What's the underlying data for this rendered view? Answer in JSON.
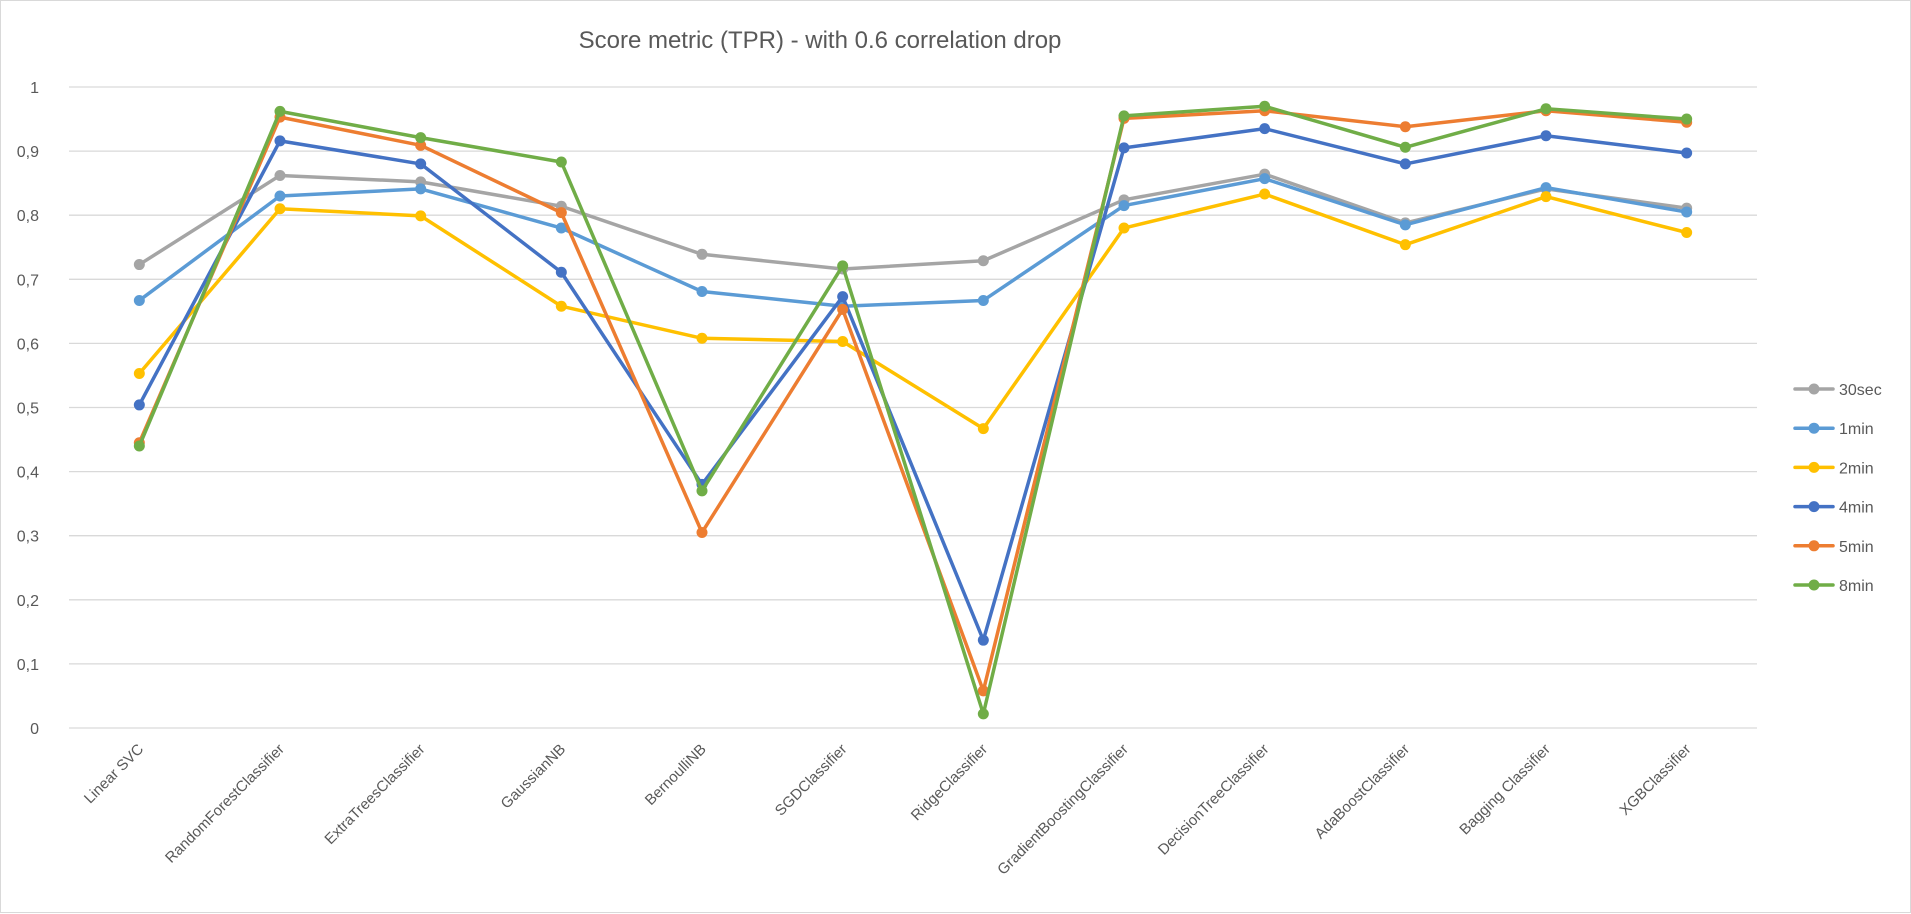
{
  "chart_data": {
    "type": "line",
    "title": "Score metric (TPR) - with 0.6 correlation drop",
    "xlabel": "",
    "ylabel": "",
    "ylim": [
      0,
      1
    ],
    "y_ticks": [
      "0",
      "0,1",
      "0,2",
      "0,3",
      "0,4",
      "0,5",
      "0,6",
      "0,7",
      "0,8",
      "0,9",
      "1"
    ],
    "grid": true,
    "legend_position": "right",
    "categories": [
      "Linear SVC",
      "RandomForestClassifier",
      "ExtraTreesClassifier",
      "GaussianNB",
      "BernoulliNB",
      "SGDClassifier",
      "RidgeClassifier",
      "GradientBoostingClassifier",
      "DecisionTreeClassifier",
      "AdaBoostClassifier",
      "Bagging Classifier",
      "XGBClassifier"
    ],
    "series": [
      {
        "name": "30sec",
        "color": "#a5a5a5",
        "values": [
          0.723,
          0.862,
          0.852,
          0.814,
          0.739,
          0.716,
          0.729,
          0.824,
          0.864,
          0.788,
          0.841,
          0.811
        ]
      },
      {
        "name": "1min",
        "color": "#5b9bd5",
        "values": [
          0.667,
          0.83,
          0.841,
          0.78,
          0.681,
          0.658,
          0.667,
          0.815,
          0.857,
          0.785,
          0.843,
          0.805
        ]
      },
      {
        "name": "2min",
        "color": "#ffc000",
        "values": [
          0.553,
          0.81,
          0.799,
          0.658,
          0.608,
          0.603,
          0.467,
          0.78,
          0.833,
          0.754,
          0.829,
          0.773
        ]
      },
      {
        "name": "4min",
        "color": "#4472c4",
        "values": [
          0.504,
          0.916,
          0.88,
          0.711,
          0.38,
          0.673,
          0.137,
          0.905,
          0.935,
          0.88,
          0.924,
          0.897
        ]
      },
      {
        "name": "5min",
        "color": "#ed7d31",
        "values": [
          0.445,
          0.953,
          0.909,
          0.804,
          0.305,
          0.653,
          0.058,
          0.951,
          0.963,
          0.938,
          0.963,
          0.945
        ]
      },
      {
        "name": "8min",
        "color": "#70ad47",
        "values": [
          0.44,
          0.962,
          0.921,
          0.883,
          0.37,
          0.721,
          0.022,
          0.955,
          0.97,
          0.906,
          0.966,
          0.95
        ]
      }
    ]
  }
}
